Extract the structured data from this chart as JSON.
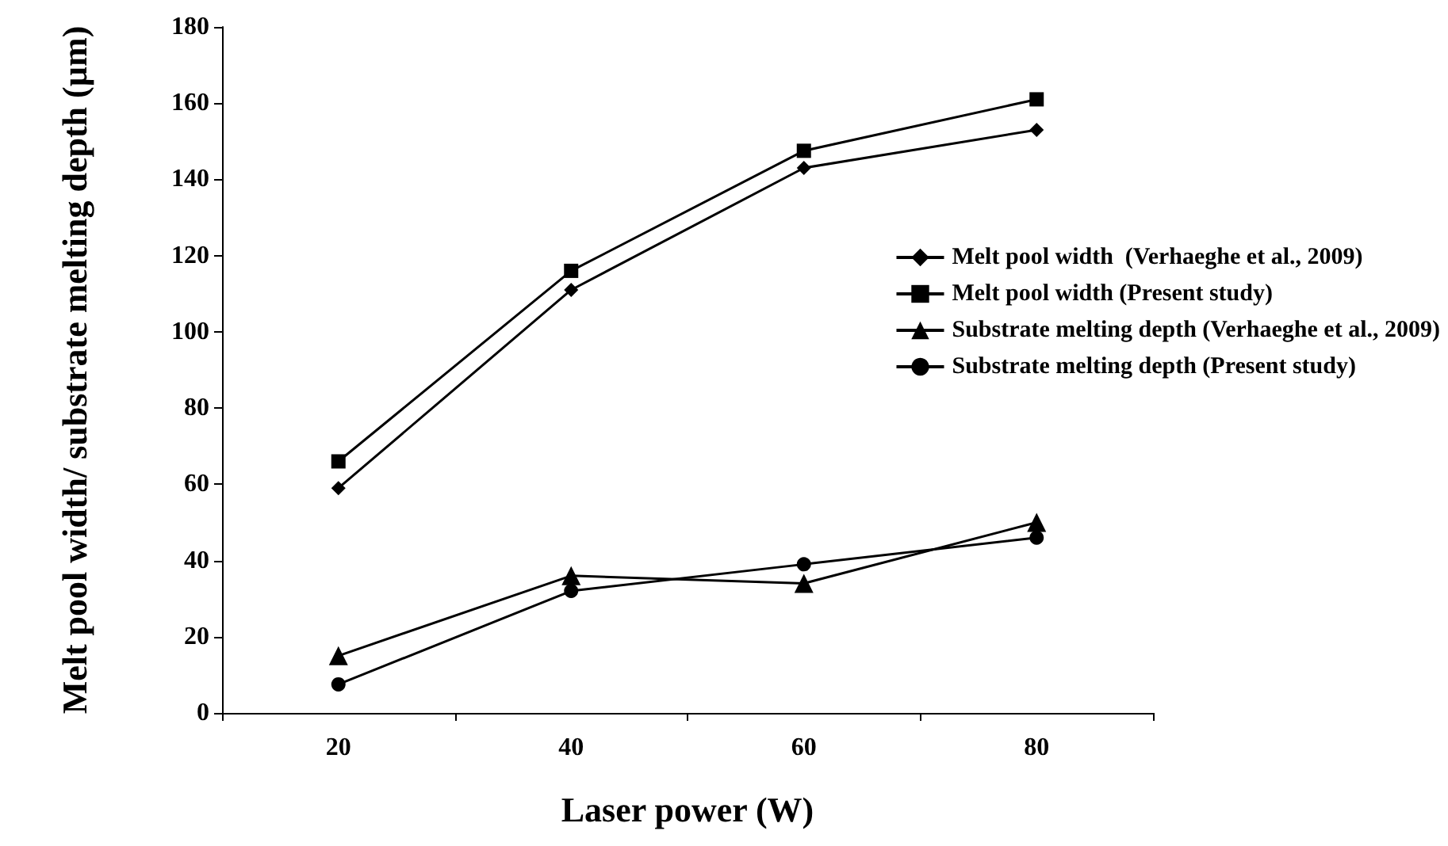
{
  "chart_data": {
    "type": "line",
    "xlabel": "Laser power (W)",
    "ylabel": "Melt pool width/ substrate melting depth (µm)",
    "categories": [
      "20",
      "40",
      "60",
      "80"
    ],
    "ylim": [
      0,
      180
    ],
    "yticks": [
      0,
      20,
      40,
      60,
      80,
      100,
      120,
      140,
      160,
      180
    ],
    "grid": false,
    "legend": "right",
    "line_style": "solid",
    "series": [
      {
        "name": "Melt pool width  (Verhaeghe et al., 2009)",
        "color": "#000000",
        "marker": "diamond",
        "values": [
          59,
          111,
          143,
          153
        ]
      },
      {
        "name": "Melt pool width (Present study)",
        "color": "#000000",
        "marker": "square",
        "values": [
          66,
          116,
          147.5,
          161
        ]
      },
      {
        "name": "Substrate melting depth (Verhaeghe et al., 2009)",
        "color": "#000000",
        "marker": "triangle",
        "values": [
          15,
          36,
          34,
          50
        ]
      },
      {
        "name": "Substrate melting depth (Present study)",
        "color": "#000000",
        "marker": "circle",
        "values": [
          7.5,
          32,
          39,
          46
        ]
      }
    ]
  }
}
